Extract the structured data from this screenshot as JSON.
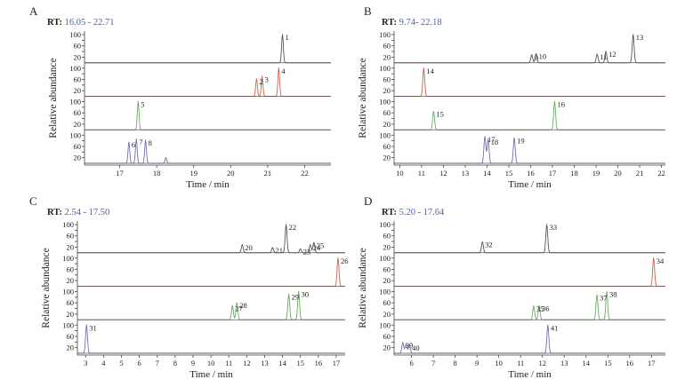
{
  "figure": {
    "ylabel": "Relative abundance",
    "xlabel": "Time / min"
  },
  "chart_data": [
    {
      "type": "line",
      "panel_label": "A",
      "rt_prefix": "RT:",
      "rt_value": "16.05 - 22.71",
      "xlabel": "Time / min",
      "ylabel": "Relative abundance",
      "xlim": [
        16.05,
        22.71
      ],
      "xticks": [
        "17",
        "18",
        "19",
        "20",
        "21",
        "22"
      ],
      "tracks": [
        {
          "color": "#555555",
          "yticks": [
            "20",
            "40",
            "60",
            "80",
            "100"
          ],
          "peaks": [
            {
              "label": "1",
              "rt": 21.4,
              "height": 100
            }
          ]
        },
        {
          "color": "#d0604a",
          "yticks": [
            "20",
            "40",
            "60",
            "80",
            "100"
          ],
          "peaks": [
            {
              "label": "2",
              "rt": 20.7,
              "height": 62
            },
            {
              "label": "3",
              "rt": 20.85,
              "height": 70
            },
            {
              "label": "4",
              "rt": 21.3,
              "height": 100
            }
          ]
        },
        {
          "color": "#6aaa64",
          "yticks": [
            "20",
            "40",
            "60",
            "80",
            "100"
          ],
          "peaks": [
            {
              "label": "5",
              "rt": 17.5,
              "height": 100
            }
          ]
        },
        {
          "color": "#6f6fb0",
          "yticks": [
            "20",
            "40",
            "60",
            "80",
            "100"
          ],
          "peaks": [
            {
              "label": "6",
              "rt": 17.25,
              "height": 75
            },
            {
              "label": "7",
              "rt": 17.45,
              "height": 85
            },
            {
              "label": "8",
              "rt": 17.7,
              "height": 82
            },
            {
              "label": "",
              "rt": 18.25,
              "height": 20
            }
          ]
        }
      ]
    },
    {
      "type": "line",
      "panel_label": "B",
      "rt_prefix": "RT:",
      "rt_value": "9.74- 22.18",
      "xlabel": "Time / min",
      "ylabel": "Relative abundance",
      "xlim": [
        9.74,
        22.18
      ],
      "xticks": [
        "10",
        "11",
        "12",
        "13",
        "14",
        "15",
        "16",
        "17",
        "18",
        "19",
        "20",
        "21",
        "22"
      ],
      "tracks": [
        {
          "color": "#555555",
          "yticks": [
            "20",
            "40",
            "60",
            "80",
            "100"
          ],
          "peaks": [
            {
              "label": "9",
              "rt": 16.05,
              "height": 28
            },
            {
              "label": "10",
              "rt": 16.25,
              "height": 32
            },
            {
              "label": "11",
              "rt": 19.05,
              "height": 30
            },
            {
              "label": "12",
              "rt": 19.45,
              "height": 40
            },
            {
              "label": "13",
              "rt": 20.7,
              "height": 100
            }
          ]
        },
        {
          "color": "#d0604a",
          "yticks": [
            "20",
            "40",
            "60",
            "80",
            "100"
          ],
          "peaks": [
            {
              "label": "14",
              "rt": 11.1,
              "height": 100
            }
          ]
        },
        {
          "color": "#6aaa64",
          "yticks": [
            "20",
            "40",
            "60",
            "80",
            "100"
          ],
          "peaks": [
            {
              "label": "15",
              "rt": 11.55,
              "height": 65
            },
            {
              "label": "16",
              "rt": 17.1,
              "height": 100
            }
          ]
        },
        {
          "color": "#6f6fb0",
          "yticks": [
            "20",
            "40",
            "60",
            "80",
            "100"
          ],
          "peaks": [
            {
              "label": "17",
              "rt": 13.9,
              "height": 95
            },
            {
              "label": "18",
              "rt": 14.05,
              "height": 85
            },
            {
              "label": "19",
              "rt": 15.25,
              "height": 90
            }
          ]
        }
      ]
    },
    {
      "type": "line",
      "panel_label": "C",
      "rt_prefix": "RT:",
      "rt_value": "2.54 - 17.50",
      "xlabel": "Time / min",
      "ylabel": "Relative abundance",
      "xlim": [
        2.54,
        17.5
      ],
      "xticks": [
        "3",
        "4",
        "5",
        "6",
        "7",
        "8",
        "9",
        "10",
        "11",
        "12",
        "13",
        "14",
        "15",
        "16",
        "17"
      ],
      "tracks": [
        {
          "color": "#555555",
          "yticks": [
            "20",
            "40",
            "60",
            "80",
            "100"
          ],
          "peaks": [
            {
              "label": "20",
              "rt": 11.75,
              "height": 28
            },
            {
              "label": "21",
              "rt": 13.45,
              "height": 18
            },
            {
              "label": "22",
              "rt": 14.2,
              "height": 100
            },
            {
              "label": "23",
              "rt": 15.0,
              "height": 14
            },
            {
              "label": "24",
              "rt": 15.55,
              "height": 28
            },
            {
              "label": "25",
              "rt": 15.75,
              "height": 36
            }
          ]
        },
        {
          "color": "#d0604a",
          "yticks": [
            "20",
            "40",
            "60",
            "80",
            "100"
          ],
          "peaks": [
            {
              "label": "26",
              "rt": 17.1,
              "height": 100
            }
          ]
        },
        {
          "color": "#6aaa64",
          "yticks": [
            "20",
            "40",
            "60",
            "80",
            "100"
          ],
          "peaks": [
            {
              "label": "27",
              "rt": 11.2,
              "height": 50
            },
            {
              "label": "28",
              "rt": 11.45,
              "height": 60
            },
            {
              "label": "29",
              "rt": 14.35,
              "height": 90
            },
            {
              "label": "30",
              "rt": 14.9,
              "height": 100
            }
          ]
        },
        {
          "color": "#6f6fb0",
          "yticks": [
            "20",
            "40",
            "60",
            "80",
            "100"
          ],
          "peaks": [
            {
              "label": "31",
              "rt": 3.05,
              "height": 100
            }
          ]
        }
      ]
    },
    {
      "type": "line",
      "panel_label": "D",
      "rt_prefix": "RT:",
      "rt_value": "5.20 - 17.64",
      "xlabel": "Time / min",
      "ylabel": "Relative abundance",
      "xlim": [
        5.2,
        17.64
      ],
      "xticks": [
        "6",
        "7",
        "8",
        "9",
        "10",
        "11",
        "12",
        "13",
        "14",
        "15",
        "16",
        "17"
      ],
      "tracks": [
        {
          "color": "#555555",
          "yticks": [
            "20",
            "40",
            "60",
            "80",
            "100"
          ],
          "peaks": [
            {
              "label": "32",
              "rt": 9.25,
              "height": 38
            },
            {
              "label": "33",
              "rt": 12.2,
              "height": 100
            }
          ]
        },
        {
          "color": "#d0604a",
          "yticks": [
            "20",
            "40",
            "60",
            "80",
            "100"
          ],
          "peaks": [
            {
              "label": "34",
              "rt": 17.1,
              "height": 100
            }
          ]
        },
        {
          "color": "#6aaa64",
          "yticks": [
            "20",
            "40",
            "60",
            "80",
            "100"
          ],
          "peaks": [
            {
              "label": "35",
              "rt": 11.6,
              "height": 48
            },
            {
              "label": "36",
              "rt": 11.85,
              "height": 50
            },
            {
              "label": "37",
              "rt": 14.5,
              "height": 88
            },
            {
              "label": "38",
              "rt": 14.95,
              "height": 100
            }
          ]
        },
        {
          "color": "#6f6fb0",
          "yticks": [
            "20",
            "40",
            "60",
            "80",
            "100"
          ],
          "peaks": [
            {
              "label": "39",
              "rt": 5.6,
              "height": 38
            },
            {
              "label": "",
              "rt": 5.75,
              "height": 32
            },
            {
              "label": "40",
              "rt": 5.9,
              "height": 28
            },
            {
              "label": "41",
              "rt": 12.25,
              "height": 100
            }
          ]
        }
      ]
    }
  ]
}
